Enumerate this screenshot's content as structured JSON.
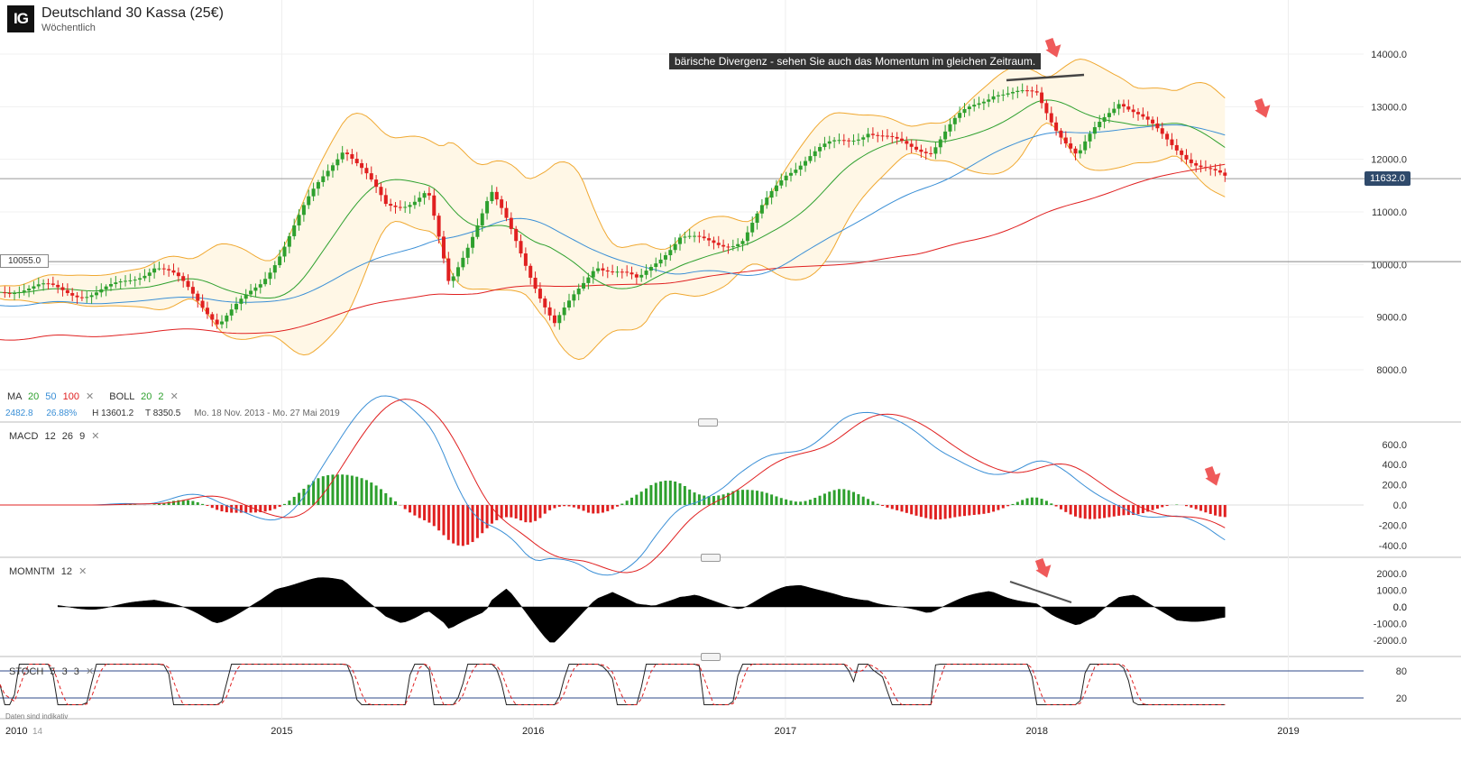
{
  "header": {
    "logo_text": "IG",
    "title": "Deutschland 30 Kassa (25€)",
    "subtitle": "Wöchentlich"
  },
  "annotation": "bärische Divergenz - sehen Sie auch das Momentum im gleichen Zeitraum.",
  "price_tag": "11632.0",
  "level_tag": "10055.0",
  "ma_legend": {
    "label": "MA",
    "p1": "20",
    "p2": "50",
    "p3": "100",
    "boll_label": "BOLL",
    "boll_p1": "20",
    "boll_p2": "2"
  },
  "stats": {
    "value": "2482.8",
    "pct": "26.88%",
    "high": "H 13601.2",
    "low": "T 8350.5",
    "range": "Mo. 18 Nov. 2013 - Mo. 27 Mai 2019"
  },
  "macd_legend": {
    "label": "MACD",
    "p1": "12",
    "p2": "26",
    "p3": "9"
  },
  "mom_legend": {
    "label": "MOMNTM",
    "p1": "12"
  },
  "stoch_legend": {
    "label": "STOCH",
    "p1": "5",
    "p2": "3",
    "p3": "3"
  },
  "disclaimer": "Daten sind indikativ",
  "x_labels": {
    "a": "2010",
    "b": "14",
    "y2015": "2015",
    "y2016": "2016",
    "y2017": "2017",
    "y2018": "2018",
    "y2019": "2019"
  },
  "colors": {
    "up": "#2ea02e",
    "down": "#e02020",
    "ma20": "#2ea02e",
    "ma50": "#3a8fd6",
    "ma100": "#e02020",
    "boll": "#f0a830",
    "boll_fill": "#fff7e6",
    "macd": "#3a8fd6",
    "signal": "#e02020",
    "arrow": "#ef5a5a",
    "stoch_k": "#222222",
    "stoch_d": "#e02020",
    "stoch_band": "#2f4a8a",
    "tag_bg": "#2f4a6b"
  },
  "chart_data": {
    "type": "candlestick",
    "period": "weekly",
    "instrument": "Deutschland 30 Kassa (25€)",
    "y_ticks": [
      14000,
      13000,
      12000,
      11000,
      10000,
      9000,
      8000
    ],
    "x_ticks": [
      "2015",
      "2016",
      "2017",
      "2018",
      "2019"
    ],
    "last_price": 11632.0,
    "horizontal_line": 10055.0,
    "date_range": "Mo. 18 Nov. 2013 - Mo. 27 Mai 2019",
    "high": 13601.2,
    "low": 8350.5,
    "close_path": [
      {
        "date": "2014-01",
        "close": 9400
      },
      {
        "date": "2014-04",
        "close": 9600
      },
      {
        "date": "2014-07",
        "close": 9900
      },
      {
        "date": "2014-10",
        "close": 8900
      },
      {
        "date": "2014-12",
        "close": 9800
      },
      {
        "date": "2015-04",
        "close": 12100
      },
      {
        "date": "2015-06",
        "close": 11200
      },
      {
        "date": "2015-08",
        "close": 11500
      },
      {
        "date": "2015-09",
        "close": 9600
      },
      {
        "date": "2015-11",
        "close": 11200
      },
      {
        "date": "2016-02",
        "close": 9000
      },
      {
        "date": "2016-04",
        "close": 10100
      },
      {
        "date": "2016-06",
        "close": 9500
      },
      {
        "date": "2016-08",
        "close": 10500
      },
      {
        "date": "2016-11",
        "close": 10600
      },
      {
        "date": "2017-01",
        "close": 11600
      },
      {
        "date": "2017-05",
        "close": 12700
      },
      {
        "date": "2017-08",
        "close": 12100
      },
      {
        "date": "2017-11",
        "close": 13300
      },
      {
        "date": "2018-01",
        "close": 13400
      },
      {
        "date": "2018-03",
        "close": 12000
      },
      {
        "date": "2018-05",
        "close": 13000
      },
      {
        "date": "2018-07",
        "close": 12500
      },
      {
        "date": "2018-08",
        "close": 12300
      },
      {
        "date": "2018-10",
        "close": 11632
      }
    ],
    "panels": [
      {
        "name": "MACD",
        "params": "12 26 9",
        "y_ticks": [
          600,
          400,
          200,
          0,
          -200,
          -400
        ]
      },
      {
        "name": "MOMNTM",
        "params": "12",
        "y_ticks": [
          2000,
          1000,
          0,
          -1000,
          -2000
        ]
      },
      {
        "name": "STOCH",
        "params": "5 3 3",
        "y_ticks": [
          80,
          20
        ]
      }
    ]
  }
}
